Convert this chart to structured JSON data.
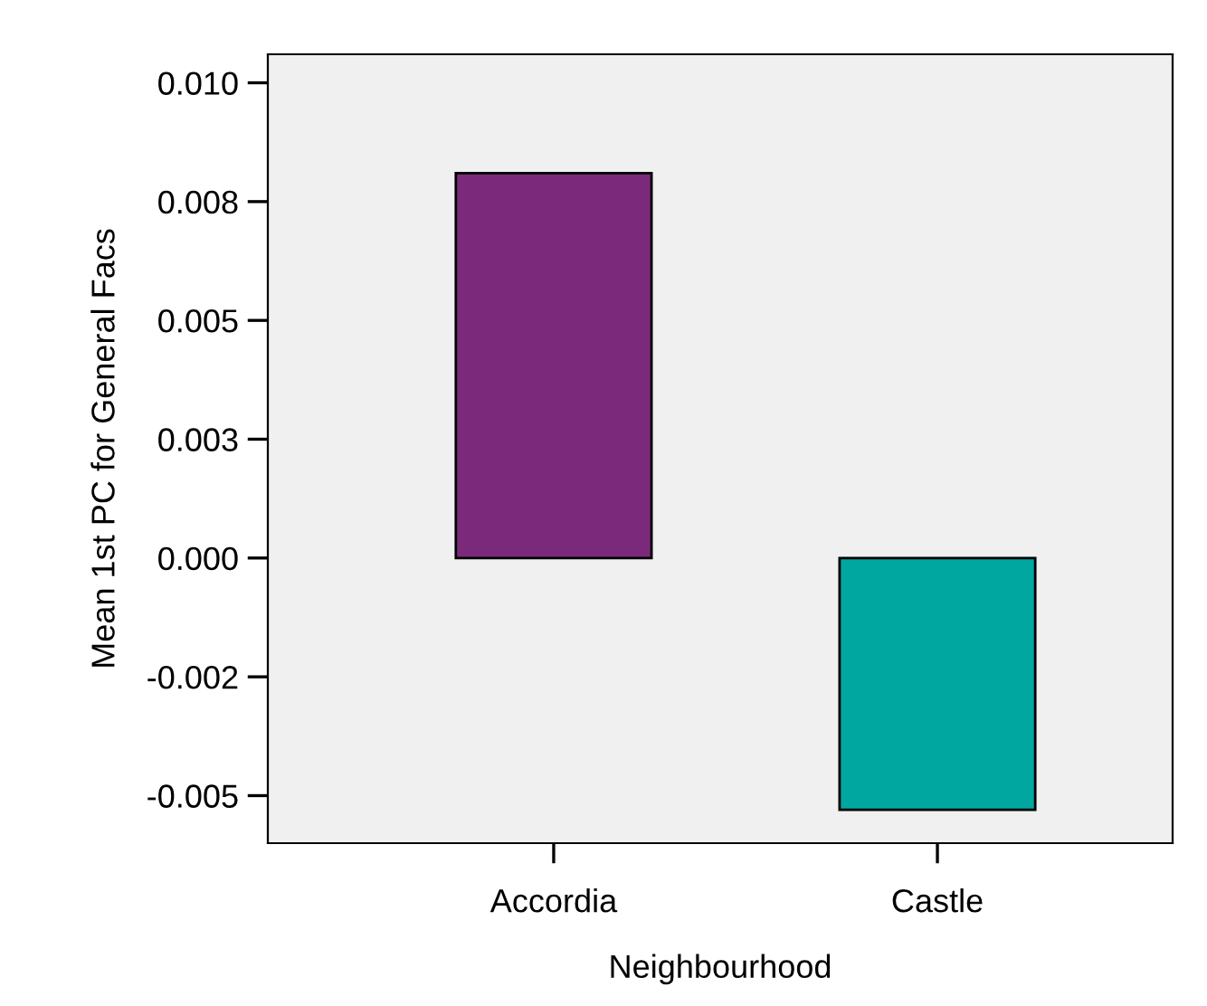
{
  "chart_data": {
    "type": "bar",
    "xlabel": "Neighbourhood",
    "ylabel": "Mean 1st PC for General Facs",
    "categories": [
      "Accordia",
      "Castle"
    ],
    "values": [
      0.0081,
      -0.0053
    ],
    "colors": [
      "#7b2a7b",
      "#00a6a0"
    ],
    "ylim": [
      -0.006,
      0.0106
    ],
    "yticks": [
      {
        "value": 0.01,
        "label": "0.010"
      },
      {
        "value": 0.0075,
        "label": "0.008"
      },
      {
        "value": 0.005,
        "label": "0.005"
      },
      {
        "value": 0.0025,
        "label": "0.003"
      },
      {
        "value": 0.0,
        "label": "0.000"
      },
      {
        "value": -0.0025,
        "label": "-0.002"
      },
      {
        "value": -0.005,
        "label": "-0.005"
      }
    ],
    "grid": false
  }
}
